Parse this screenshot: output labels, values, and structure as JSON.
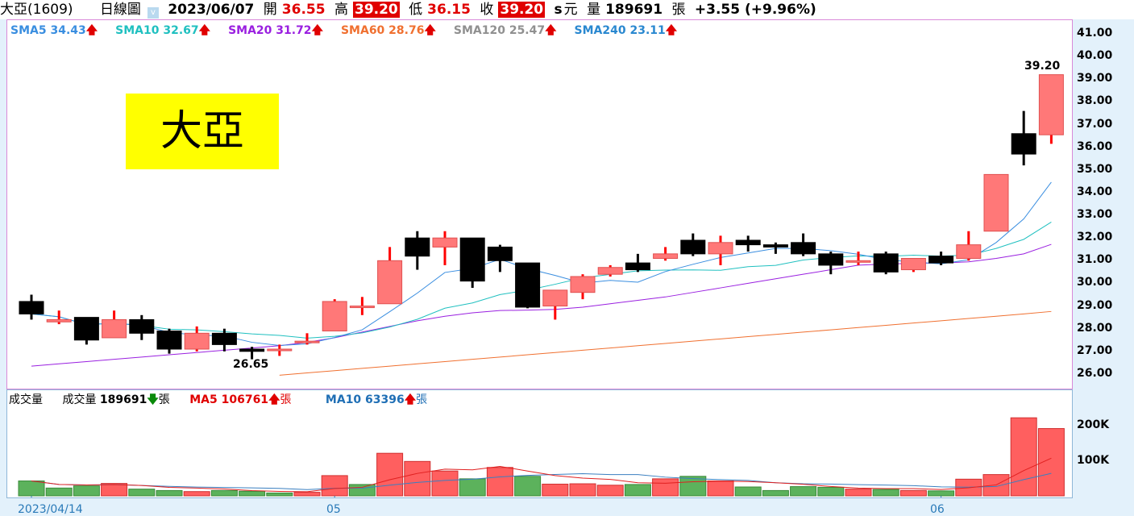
{
  "header": {
    "symbol": "大亞(1609)",
    "chart_type": "日線圖",
    "date": "2023/06/07",
    "open_label": "開",
    "open": "36.55",
    "high_label": "高",
    "high": "39.20",
    "low_label": "低",
    "low": "36.15",
    "close_label": "收",
    "close": "39.20",
    "unit_s": "s",
    "currency": "元",
    "volume_label": "量",
    "volume": "189691",
    "volume_unit": "張",
    "change": "+3.55 (+9.96%)"
  },
  "sma_legend": [
    {
      "label": "SMA5 34.43",
      "color": "#3a8ee0"
    },
    {
      "label": "SMA10 32.67",
      "color": "#20c0c0"
    },
    {
      "label": "SMA20 31.72",
      "color": "#9a20e0"
    },
    {
      "label": "SMA60 28.76",
      "color": "#f07030"
    },
    {
      "label": "SMA120 25.47",
      "color": "#909090"
    },
    {
      "label": "SMA240 23.11",
      "color": "#2a88d0"
    }
  ],
  "arrow_up": "🡅",
  "arrow_down": "🡇",
  "logo_text": "大亞",
  "annotations": {
    "low": "26.65",
    "high": "39.20"
  },
  "volume_legend": {
    "title": "成交量",
    "vol_label": "成交量",
    "vol_value": "189691",
    "unit": "張",
    "ma5": "MA5 106761",
    "ma10": "MA10 63396"
  },
  "x_labels": [
    "2023/04/14",
    "05",
    "06"
  ],
  "chart_data": [
    {
      "type": "candlestick",
      "y_ticks": [
        "41.00",
        "40.00",
        "39.00",
        "38.00",
        "37.00",
        "36.00",
        "35.00",
        "34.00",
        "33.00",
        "32.00",
        "31.00",
        "30.00",
        "29.00",
        "28.00",
        "27.00",
        "26.00"
      ],
      "ylim": [
        26,
        41
      ],
      "open": [
        29.2,
        28.3,
        28.5,
        27.6,
        28.4,
        27.9,
        27.1,
        27.8,
        27.1,
        27.1,
        27.4,
        27.9,
        29.0,
        29.1,
        32.0,
        31.6,
        32.0,
        31.6,
        30.9,
        29.0,
        29.6,
        30.4,
        30.9,
        31.1,
        31.9,
        31.3,
        31.9,
        31.7,
        31.8,
        31.3,
        31.0,
        31.3,
        30.6,
        31.2,
        31.1,
        32.3,
        36.6,
        36.55
      ],
      "high": [
        29.5,
        28.8,
        28.5,
        28.8,
        28.6,
        28.0,
        28.1,
        28.0,
        27.2,
        27.3,
        27.8,
        29.3,
        29.4,
        31.6,
        32.3,
        32.3,
        32.0,
        31.7,
        30.9,
        29.7,
        30.4,
        30.8,
        31.3,
        31.6,
        32.2,
        32.1,
        32.1,
        31.8,
        32.2,
        31.4,
        31.4,
        31.4,
        31.1,
        31.4,
        32.3,
        34.8,
        37.6,
        39.2
      ],
      "low": [
        28.4,
        28.2,
        27.3,
        27.6,
        27.5,
        26.9,
        27.0,
        27.0,
        26.65,
        26.8,
        27.3,
        27.9,
        28.6,
        29.1,
        30.6,
        30.8,
        29.8,
        30.5,
        28.9,
        28.4,
        29.3,
        30.3,
        30.5,
        31.0,
        31.2,
        30.8,
        31.4,
        31.3,
        31.2,
        30.4,
        30.8,
        30.4,
        30.5,
        30.8,
        31.0,
        32.3,
        35.2,
        36.15
      ],
      "close": [
        28.65,
        28.4,
        27.5,
        28.4,
        27.8,
        27.1,
        27.8,
        27.3,
        27.0,
        27.1,
        27.45,
        29.2,
        29.0,
        31.0,
        31.2,
        32.0,
        30.1,
        31.0,
        28.95,
        29.7,
        30.3,
        30.7,
        30.6,
        31.3,
        31.3,
        31.8,
        31.7,
        31.6,
        31.3,
        30.8,
        31.0,
        30.5,
        31.1,
        30.9,
        31.7,
        34.8,
        35.7,
        39.2
      ],
      "sma20": [
        26.35,
        26.45,
        26.55,
        26.65,
        26.75,
        26.85,
        26.95,
        27.05,
        27.15,
        27.25,
        27.4,
        27.6,
        27.85,
        28.1,
        28.35,
        28.55,
        28.7,
        28.8,
        28.82,
        28.85,
        28.95,
        29.1,
        29.25,
        29.4,
        29.6,
        29.8,
        30.0,
        30.2,
        30.4,
        30.6,
        30.8,
        30.85,
        30.88,
        30.9,
        30.95,
        31.1,
        31.3,
        31.72
      ],
      "sma60": [
        null,
        null,
        null,
        null,
        null,
        null,
        null,
        null,
        null,
        25.95,
        26.05,
        26.15,
        26.25,
        26.35,
        26.45,
        26.55,
        26.65,
        26.75,
        26.85,
        26.95,
        27.05,
        27.15,
        27.25,
        27.35,
        27.45,
        27.55,
        27.65,
        27.75,
        27.85,
        27.95,
        28.05,
        28.15,
        28.25,
        28.35,
        28.45,
        28.55,
        28.65,
        28.76
      ]
    },
    {
      "type": "bar",
      "y_ticks": [
        "200K",
        "100K"
      ],
      "ylim": [
        0,
        230000
      ],
      "values": [
        42000,
        22000,
        28000,
        35000,
        19000,
        15000,
        12000,
        15000,
        13000,
        8000,
        10000,
        57000,
        32000,
        120000,
        97000,
        70000,
        48000,
        80000,
        55000,
        33000,
        34000,
        30000,
        32000,
        48000,
        55000,
        42000,
        25000,
        15000,
        26000,
        24000,
        19000,
        18000,
        15000,
        14000,
        47000,
        60000,
        220000,
        189691
      ],
      "colors": [
        "g",
        "g",
        "g",
        "r",
        "g",
        "g",
        "r",
        "g",
        "g",
        "g",
        "r",
        "r",
        "g",
        "r",
        "r",
        "r",
        "g",
        "r",
        "g",
        "r",
        "r",
        "r",
        "g",
        "r",
        "g",
        "r",
        "g",
        "g",
        "g",
        "g",
        "r",
        "g",
        "r",
        "g",
        "r",
        "r",
        "r",
        "r"
      ]
    }
  ]
}
